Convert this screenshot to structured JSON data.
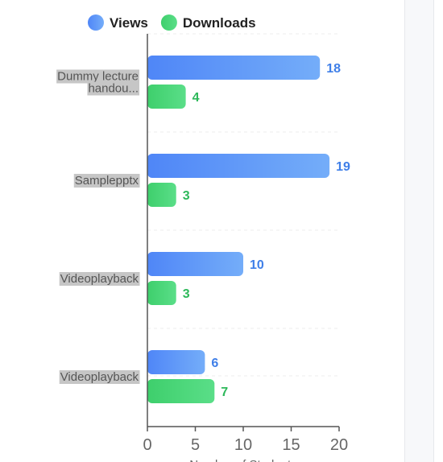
{
  "chart_data": {
    "type": "bar",
    "orientation": "horizontal",
    "categories": [
      "Dummy lecture handou...",
      "Samplepptx",
      "Videoplayback",
      "Videoplayback"
    ],
    "category_lines": [
      [
        "Dummy lecture",
        "handou..."
      ],
      [
        "Samplepptx"
      ],
      [
        "Videoplayback"
      ],
      [
        "Videoplayback"
      ]
    ],
    "series": [
      {
        "name": "Views",
        "values": [
          18,
          19,
          10,
          6
        ],
        "color": "#4f86f7",
        "color_end": "#74adf9",
        "label_color": "#3f7fe8"
      },
      {
        "name": "Downloads",
        "values": [
          4,
          3,
          3,
          7
        ],
        "color": "#3ecf6c",
        "color_end": "#5ade88",
        "label_color": "#2db85a"
      }
    ],
    "xlabel": "Number of Students",
    "xlim": [
      0,
      20
    ],
    "xticks": [
      0,
      5,
      10,
      15,
      20
    ],
    "legend_position": "top-left",
    "grid": "dashed horizontal separators"
  }
}
